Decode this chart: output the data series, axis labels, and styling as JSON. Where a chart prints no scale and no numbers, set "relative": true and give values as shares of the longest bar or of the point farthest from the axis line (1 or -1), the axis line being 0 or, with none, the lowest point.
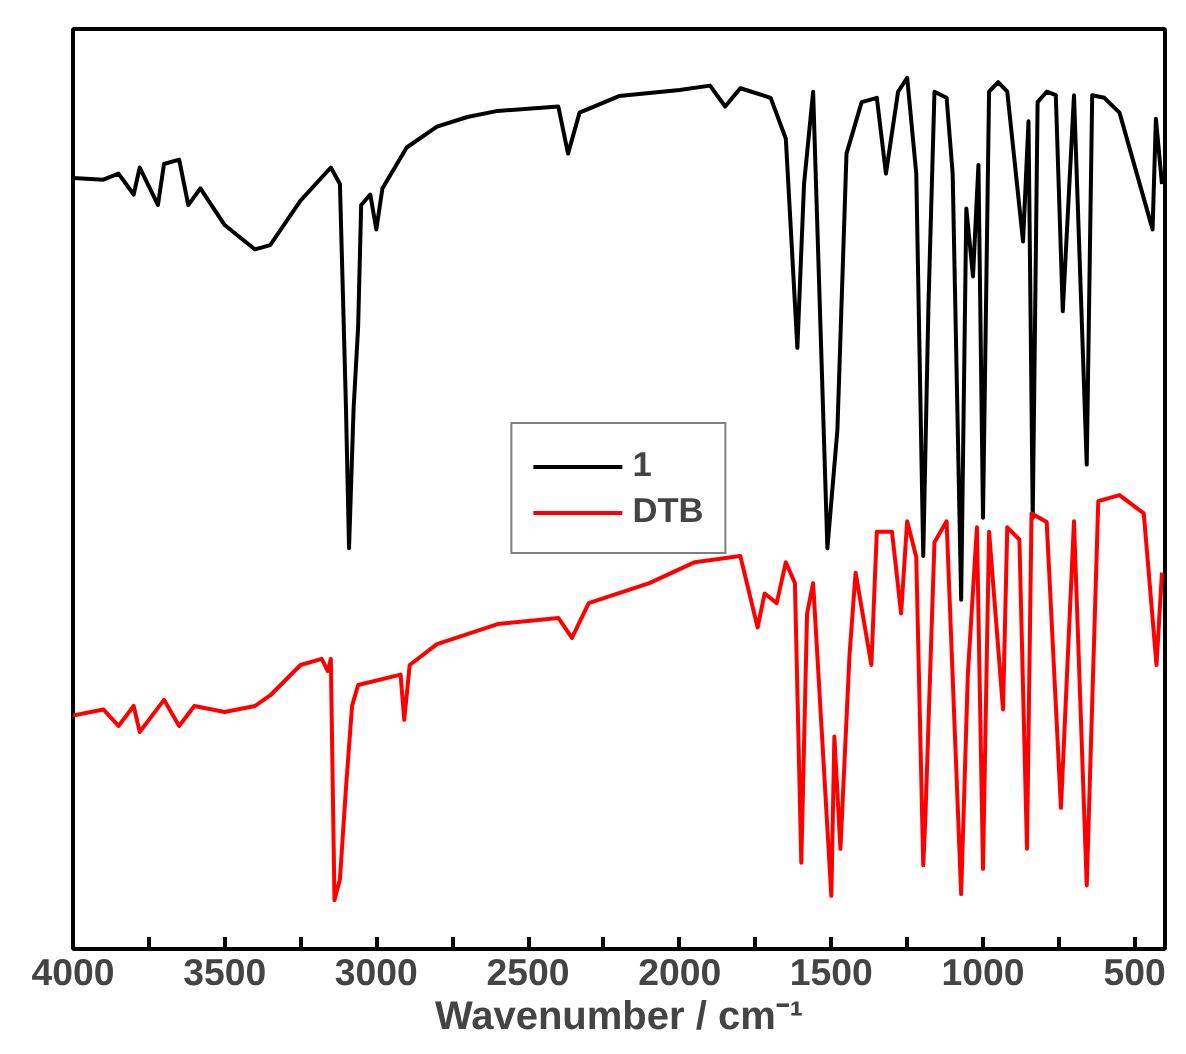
{
  "chart_data": {
    "type": "line",
    "relative": true,
    "xlabel": "Wavenumber / cm⁻¹",
    "xlim": [
      4000,
      400
    ],
    "xticks": [
      4000,
      {
        "value": 3750,
        "label": null
      },
      3500,
      {
        "value": 3250,
        "label": null
      },
      3000,
      {
        "value": 2750,
        "label": null
      },
      2500,
      {
        "value": 2250,
        "label": null
      },
      2000,
      {
        "value": 1750,
        "label": null
      },
      1500,
      {
        "value": 1250,
        "label": null
      },
      1000,
      {
        "value": 750,
        "label": null
      },
      500
    ],
    "legend": "center",
    "grid": false,
    "marker": "none",
    "line_style": "solid",
    "series": [
      {
        "name": "1",
        "color": "#000000",
        "x": [
          4000,
          3900,
          3850,
          3800,
          3780,
          3720,
          3700,
          3650,
          3620,
          3580,
          3500,
          3400,
          3350,
          3250,
          3150,
          3120,
          3100,
          3090,
          3075,
          3060,
          3050,
          3020,
          3000,
          2980,
          2900,
          2800,
          2700,
          2600,
          2400,
          2368,
          2330,
          2200,
          2000,
          1900,
          1850,
          1800,
          1700,
          1650,
          1612,
          1590,
          1560,
          1513,
          1480,
          1450,
          1400,
          1350,
          1320,
          1280,
          1250,
          1220,
          1197,
          1180,
          1160,
          1120,
          1100,
          1072,
          1055,
          1033,
          1015,
          1000,
          980,
          950,
          920,
          868,
          850,
          836,
          820,
          790,
          760,
          737,
          700,
          658,
          640,
          600,
          550,
          441,
          430,
          410
        ],
        "values": [
          0.885,
          0.883,
          0.89,
          0.866,
          0.897,
          0.854,
          0.901,
          0.906,
          0.854,
          0.873,
          0.831,
          0.803,
          0.808,
          0.859,
          0.897,
          0.878,
          0.62,
          0.46,
          0.62,
          0.714,
          0.854,
          0.866,
          0.826,
          0.873,
          0.92,
          0.944,
          0.955,
          0.962,
          0.967,
          0.913,
          0.96,
          0.979,
          0.986,
          0.991,
          0.967,
          0.988,
          0.977,
          0.93,
          0.69,
          0.878,
          0.984,
          0.46,
          0.596,
          0.913,
          0.972,
          0.977,
          0.89,
          0.984,
          1.0,
          0.89,
          0.451,
          0.737,
          0.984,
          0.977,
          0.89,
          0.401,
          0.85,
          0.772,
          0.9,
          0.495,
          0.984,
          0.995,
          0.984,
          0.812,
          0.95,
          0.495,
          0.972,
          0.984,
          0.98,
          0.732,
          0.98,
          0.556,
          0.98,
          0.977,
          0.96,
          0.826,
          0.953,
          0.878
        ]
      },
      {
        "name": "DTB",
        "color": "#ff0000",
        "x": [
          4000,
          3900,
          3850,
          3800,
          3780,
          3700,
          3650,
          3600,
          3500,
          3400,
          3350,
          3250,
          3180,
          3160,
          3150,
          3138,
          3120,
          3100,
          3080,
          3060,
          2920,
          2908,
          2890,
          2800,
          2600,
          2400,
          2355,
          2300,
          2100,
          1950,
          1800,
          1743,
          1720,
          1680,
          1650,
          1620,
          1599,
          1580,
          1560,
          1500,
          1490,
          1470,
          1440,
          1420,
          1368,
          1350,
          1300,
          1270,
          1250,
          1220,
          1197,
          1190,
          1160,
          1120,
          1072,
          1050,
          1020,
          1000,
          980,
          934,
          920,
          880,
          855,
          840,
          790,
          743,
          700,
          658,
          620,
          550,
          470,
          428,
          410
        ],
        "values": [
          0.268,
          0.275,
          0.256,
          0.279,
          0.249,
          0.286,
          0.256,
          0.279,
          0.272,
          0.279,
          0.291,
          0.326,
          0.333,
          0.319,
          0.333,
          0.056,
          0.08,
          0.185,
          0.279,
          0.303,
          0.315,
          0.263,
          0.326,
          0.35,
          0.373,
          0.38,
          0.357,
          0.397,
          0.42,
          0.444,
          0.451,
          0.369,
          0.408,
          0.397,
          0.444,
          0.42,
          0.099,
          0.385,
          0.42,
          0.061,
          0.244,
          0.115,
          0.338,
          0.432,
          0.326,
          0.479,
          0.479,
          0.385,
          0.491,
          0.45,
          0.096,
          0.15,
          0.467,
          0.491,
          0.063,
          0.315,
          0.484,
          0.092,
          0.479,
          0.275,
          0.484,
          0.47,
          0.115,
          0.5,
          0.49,
          0.162,
          0.491,
          0.073,
          0.514,
          0.521,
          0.5,
          0.326,
          0.432
        ]
      }
    ]
  }
}
